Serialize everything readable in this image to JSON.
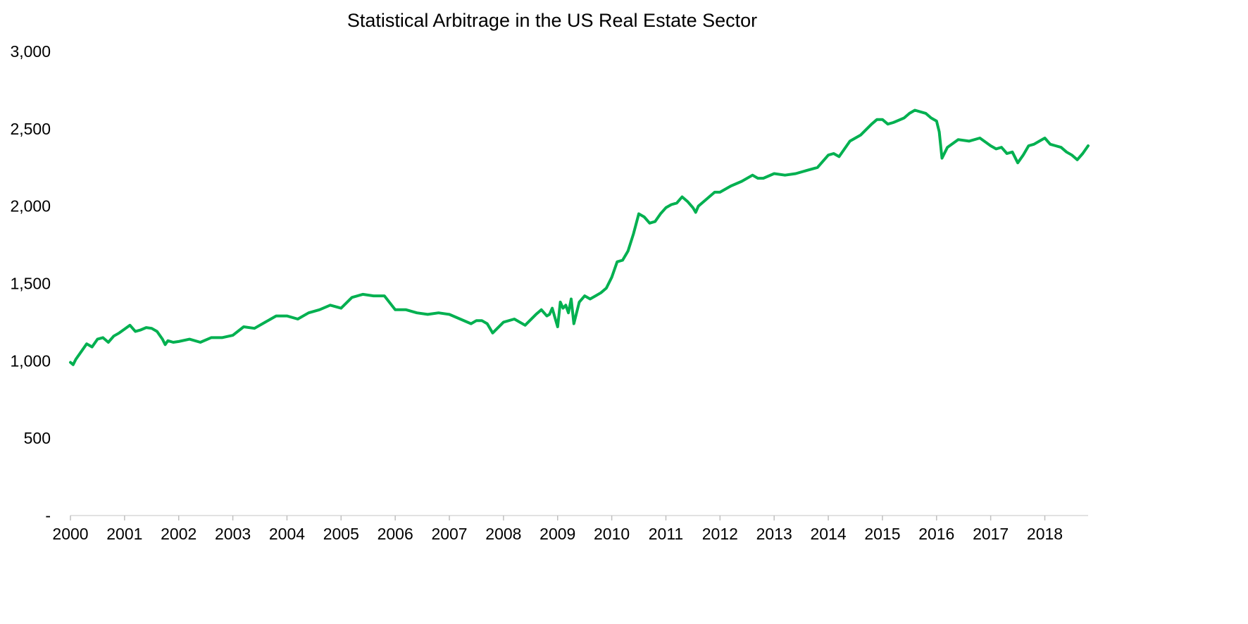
{
  "chart_data": {
    "type": "line",
    "title": "Statistical Arbitrage in the US Real Estate Sector",
    "xlabel": "",
    "ylabel": "",
    "x_tick_labels": [
      "2000",
      "2001",
      "2002",
      "2003",
      "2004",
      "2005",
      "2006",
      "2007",
      "2008",
      "2009",
      "2010",
      "2011",
      "2012",
      "2013",
      "2014",
      "2015",
      "2016",
      "2017",
      "2018"
    ],
    "y_tick_labels": [
      "-",
      "500",
      "1,000",
      "1,500",
      "2,000",
      "2,500",
      "3,000"
    ],
    "y_ticks": [
      0,
      500,
      1000,
      1500,
      2000,
      2500,
      3000
    ],
    "ylim": [
      0,
      3000
    ],
    "xlim": [
      2000.0,
      2018.8
    ],
    "grid": false,
    "legend": "none",
    "series": [
      {
        "color": "#00B050",
        "x": [
          2000.0,
          2000.05,
          2000.1,
          2000.2,
          2000.3,
          2000.4,
          2000.5,
          2000.6,
          2000.7,
          2000.8,
          2000.9,
          2001.0,
          2001.1,
          2001.2,
          2001.3,
          2001.4,
          2001.5,
          2001.6,
          2001.7,
          2001.75,
          2001.8,
          2001.9,
          2002.0,
          2002.2,
          2002.4,
          2002.6,
          2002.8,
          2003.0,
          2003.2,
          2003.4,
          2003.6,
          2003.8,
          2004.0,
          2004.2,
          2004.4,
          2004.6,
          2004.8,
          2005.0,
          2005.2,
          2005.4,
          2005.6,
          2005.8,
          2006.0,
          2006.2,
          2006.4,
          2006.6,
          2006.8,
          2007.0,
          2007.2,
          2007.4,
          2007.5,
          2007.6,
          2007.7,
          2007.8,
          2008.0,
          2008.2,
          2008.4,
          2008.6,
          2008.7,
          2008.8,
          2008.85,
          2008.9,
          2008.95,
          2009.0,
          2009.05,
          2009.1,
          2009.15,
          2009.2,
          2009.25,
          2009.3,
          2009.4,
          2009.5,
          2009.6,
          2009.7,
          2009.8,
          2009.9,
          2010.0,
          2010.1,
          2010.2,
          2010.3,
          2010.4,
          2010.5,
          2010.6,
          2010.7,
          2010.8,
          2010.9,
          2011.0,
          2011.1,
          2011.2,
          2011.3,
          2011.4,
          2011.5,
          2011.55,
          2011.6,
          2011.7,
          2011.8,
          2011.9,
          2012.0,
          2012.2,
          2012.4,
          2012.6,
          2012.7,
          2012.8,
          2013.0,
          2013.2,
          2013.4,
          2013.6,
          2013.8,
          2014.0,
          2014.1,
          2014.2,
          2014.4,
          2014.6,
          2014.8,
          2014.9,
          2015.0,
          2015.1,
          2015.2,
          2015.4,
          2015.5,
          2015.6,
          2015.8,
          2015.9,
          2016.0,
          2016.05,
          2016.1,
          2016.2,
          2016.4,
          2016.6,
          2016.8,
          2017.0,
          2017.1,
          2017.2,
          2017.3,
          2017.4,
          2017.5,
          2017.6,
          2017.7,
          2017.8,
          2017.9,
          2018.0,
          2018.1,
          2018.2,
          2018.3,
          2018.4,
          2018.5,
          2018.6,
          2018.7,
          2018.8
        ],
        "y": [
          990,
          975,
          1010,
          1060,
          1110,
          1090,
          1140,
          1150,
          1120,
          1160,
          1180,
          1205,
          1230,
          1190,
          1200,
          1215,
          1210,
          1190,
          1140,
          1105,
          1130,
          1120,
          1125,
          1140,
          1120,
          1150,
          1150,
          1165,
          1220,
          1210,
          1250,
          1290,
          1290,
          1270,
          1310,
          1330,
          1360,
          1340,
          1410,
          1430,
          1420,
          1420,
          1330,
          1330,
          1310,
          1300,
          1310,
          1300,
          1270,
          1240,
          1260,
          1260,
          1240,
          1180,
          1250,
          1270,
          1230,
          1300,
          1330,
          1290,
          1300,
          1340,
          1280,
          1220,
          1380,
          1340,
          1360,
          1310,
          1400,
          1240,
          1380,
          1420,
          1400,
          1420,
          1440,
          1470,
          1540,
          1640,
          1650,
          1710,
          1820,
          1950,
          1930,
          1890,
          1900,
          1950,
          1990,
          2010,
          2020,
          2060,
          2030,
          1990,
          1960,
          2000,
          2030,
          2060,
          2090,
          2090,
          2130,
          2160,
          2200,
          2180,
          2180,
          2210,
          2200,
          2210,
          2230,
          2250,
          2330,
          2340,
          2320,
          2420,
          2460,
          2530,
          2560,
          2560,
          2530,
          2540,
          2570,
          2600,
          2620,
          2600,
          2570,
          2550,
          2480,
          2310,
          2380,
          2430,
          2420,
          2440,
          2390,
          2370,
          2380,
          2340,
          2350,
          2280,
          2330,
          2390,
          2400,
          2420,
          2440,
          2400,
          2390,
          2380,
          2350,
          2330,
          2300,
          2340,
          2390
        ]
      }
    ]
  }
}
